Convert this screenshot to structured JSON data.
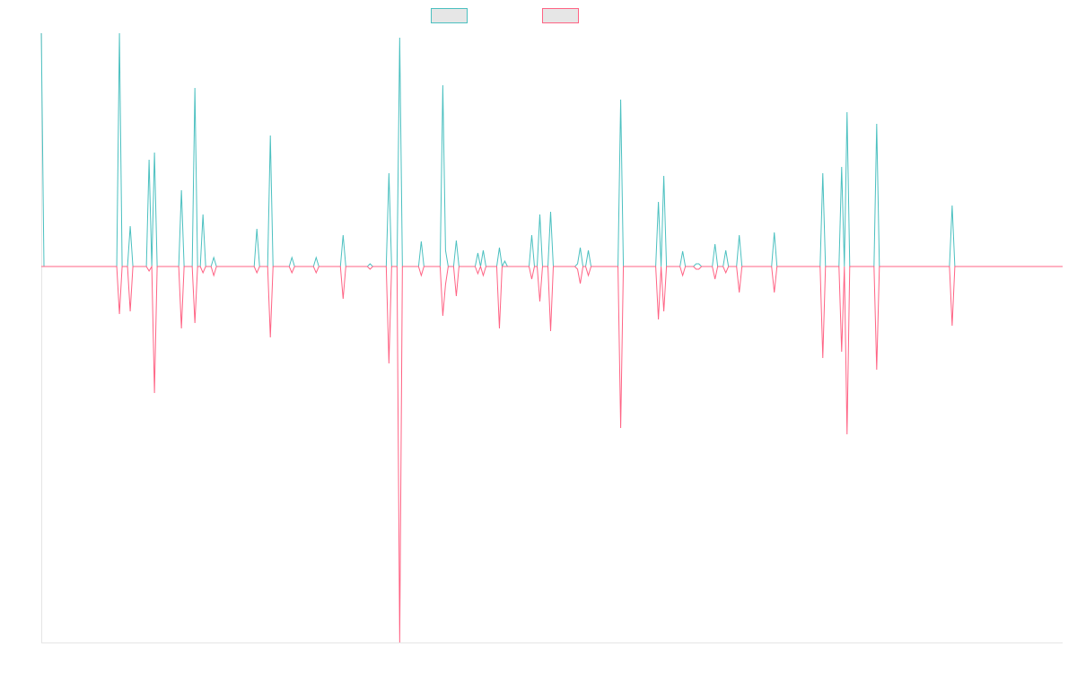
{
  "chart_data": {
    "type": "line",
    "ylim": [
      -419,
      260
    ],
    "legend": "top",
    "series": [
      {
        "color": "#4bc0c0",
        "values": [
          260,
          0,
          0,
          0,
          0,
          0,
          0,
          0,
          0,
          0,
          0,
          0,
          0,
          0,
          0,
          0,
          0,
          0,
          0,
          0,
          0,
          0,
          0,
          0,
          0,
          0,
          0,
          0,
          0,
          260,
          0,
          0,
          0,
          45,
          0,
          0,
          0,
          0,
          0,
          0,
          119,
          0,
          127,
          0,
          0,
          0,
          0,
          0,
          0,
          0,
          0,
          0,
          85,
          0,
          0,
          0,
          0,
          199,
          0,
          0,
          58,
          0,
          0,
          0,
          10,
          0,
          0,
          0,
          0,
          0,
          0,
          0,
          0,
          0,
          0,
          0,
          0,
          0,
          0,
          0,
          42,
          0,
          0,
          0,
          0,
          146,
          0,
          0,
          0,
          0,
          0,
          0,
          0,
          10,
          0,
          0,
          0,
          0,
          0,
          0,
          0,
          0,
          10,
          0,
          0,
          0,
          0,
          0,
          0,
          0,
          0,
          0,
          35,
          0,
          0,
          0,
          0,
          0,
          0,
          0,
          0,
          0,
          3,
          0,
          0,
          0,
          0,
          0,
          0,
          104,
          0,
          0,
          0,
          255,
          0,
          0,
          0,
          0,
          0,
          0,
          0,
          28,
          0,
          0,
          0,
          0,
          0,
          0,
          0,
          202,
          18,
          0,
          0,
          0,
          29,
          0,
          0,
          0,
          0,
          0,
          0,
          0,
          15,
          0,
          18,
          0,
          0,
          0,
          0,
          0,
          21,
          0,
          6,
          0,
          0,
          0,
          0,
          0,
          0,
          0,
          0,
          0,
          35,
          0,
          0,
          58,
          0,
          0,
          0,
          61,
          0,
          0,
          0,
          0,
          0,
          0,
          0,
          0,
          0,
          3,
          21,
          0,
          0,
          18,
          0,
          0,
          0,
          0,
          0,
          0,
          0,
          0,
          0,
          0,
          0,
          186,
          0,
          0,
          0,
          0,
          0,
          0,
          0,
          0,
          0,
          0,
          0,
          0,
          0,
          72,
          0,
          101,
          0,
          0,
          0,
          0,
          0,
          0,
          17,
          0,
          0,
          0,
          0,
          3,
          3,
          0,
          0,
          0,
          0,
          0,
          25,
          0,
          0,
          0,
          18,
          0,
          0,
          0,
          0,
          35,
          0,
          0,
          0,
          0,
          0,
          0,
          0,
          0,
          0,
          0,
          0,
          0,
          38,
          0,
          0,
          0,
          0,
          0,
          0,
          0,
          0,
          0,
          0,
          0,
          0,
          0,
          0,
          0,
          0,
          0,
          104,
          0,
          0,
          0,
          0,
          0,
          0,
          111,
          0,
          172,
          0,
          0,
          0,
          0,
          0,
          0,
          0,
          0,
          0,
          0,
          159,
          0,
          0,
          0,
          0,
          0,
          0,
          0,
          0,
          0,
          0,
          0,
          0,
          0,
          0,
          0,
          0,
          0,
          0,
          0,
          0,
          0,
          0,
          0,
          0,
          0,
          0,
          0,
          68,
          0,
          0,
          0,
          0,
          0,
          0,
          0,
          0,
          0,
          0,
          0,
          0,
          0,
          0,
          0,
          0,
          0,
          0,
          0,
          0,
          0,
          0,
          0,
          0,
          0,
          0,
          0,
          0,
          0,
          0,
          0,
          0,
          0,
          0,
          0,
          0,
          0,
          0,
          0,
          0,
          0
        ]
      },
      {
        "color": "#ff6384",
        "values": [
          0,
          0,
          0,
          0,
          0,
          0,
          0,
          0,
          0,
          0,
          0,
          0,
          0,
          0,
          0,
          0,
          0,
          0,
          0,
          0,
          0,
          0,
          0,
          0,
          0,
          0,
          0,
          0,
          0,
          -53,
          0,
          0,
          0,
          -50,
          0,
          0,
          0,
          0,
          0,
          0,
          -5,
          0,
          -141,
          0,
          0,
          0,
          0,
          0,
          0,
          0,
          0,
          0,
          -69,
          0,
          0,
          0,
          0,
          -63,
          0,
          0,
          -7,
          0,
          0,
          0,
          -10,
          0,
          0,
          0,
          0,
          0,
          0,
          0,
          0,
          0,
          0,
          0,
          0,
          0,
          0,
          0,
          -7,
          0,
          0,
          0,
          0,
          -79,
          0,
          0,
          0,
          0,
          0,
          0,
          0,
          -7,
          0,
          0,
          0,
          0,
          0,
          0,
          0,
          0,
          -7,
          0,
          0,
          0,
          0,
          0,
          0,
          0,
          0,
          0,
          -36,
          0,
          0,
          0,
          0,
          0,
          0,
          0,
          0,
          0,
          -3,
          0,
          0,
          0,
          0,
          0,
          0,
          -108,
          0,
          0,
          0,
          -419,
          0,
          0,
          0,
          0,
          0,
          0,
          0,
          -10,
          0,
          0,
          0,
          0,
          0,
          0,
          0,
          -55,
          -20,
          0,
          0,
          0,
          -33,
          0,
          0,
          0,
          0,
          0,
          0,
          0,
          -8,
          0,
          -10,
          0,
          0,
          0,
          0,
          0,
          -69,
          0,
          0,
          0,
          0,
          0,
          0,
          0,
          0,
          0,
          0,
          0,
          -14,
          0,
          0,
          -39,
          0,
          0,
          0,
          -72,
          0,
          0,
          0,
          0,
          0,
          0,
          0,
          0,
          0,
          -3,
          -19,
          0,
          0,
          -10,
          0,
          0,
          0,
          0,
          0,
          0,
          0,
          0,
          0,
          0,
          0,
          -180,
          0,
          0,
          0,
          0,
          0,
          0,
          0,
          0,
          0,
          0,
          0,
          0,
          0,
          -59,
          0,
          -50,
          0,
          0,
          0,
          0,
          0,
          0,
          -10,
          0,
          0,
          0,
          0,
          -3,
          -3,
          0,
          0,
          0,
          0,
          0,
          -14,
          0,
          0,
          0,
          -7,
          0,
          0,
          0,
          0,
          -29,
          0,
          0,
          0,
          0,
          0,
          0,
          0,
          0,
          0,
          0,
          0,
          0,
          -29,
          0,
          0,
          0,
          0,
          0,
          0,
          0,
          0,
          0,
          0,
          0,
          0,
          0,
          0,
          0,
          0,
          0,
          -102,
          0,
          0,
          0,
          0,
          0,
          0,
          -95,
          0,
          -187,
          0,
          0,
          0,
          0,
          0,
          0,
          0,
          0,
          0,
          0,
          -115,
          0,
          0,
          0,
          0,
          0,
          0,
          0,
          0,
          0,
          0,
          0,
          0,
          0,
          0,
          0,
          0,
          0,
          0,
          0,
          0,
          0,
          0,
          0,
          0,
          0,
          0,
          0,
          -66,
          0,
          0,
          0,
          0,
          0,
          0,
          0,
          0,
          0,
          0,
          0,
          0,
          0,
          0,
          0,
          0,
          0,
          0,
          0,
          0,
          0,
          0,
          0,
          0,
          0,
          0,
          0,
          0,
          0,
          0,
          0,
          0,
          0,
          0,
          0,
          0,
          0,
          0,
          0,
          0,
          0
        ]
      }
    ]
  }
}
